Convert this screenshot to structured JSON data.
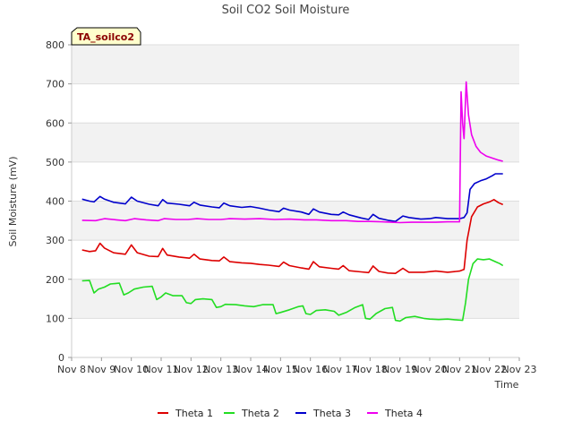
{
  "chart_data": {
    "type": "line",
    "title": "Soil CO2 Soil Moisture",
    "xlabel": "Time",
    "ylabel": "Soil Moisture (mV)",
    "tag": "TA_soilco2",
    "xlim": [
      0,
      15
    ],
    "ylim": [
      0,
      800
    ],
    "yticks": [
      0,
      100,
      200,
      300,
      400,
      500,
      600,
      700,
      800
    ],
    "xticks": [
      0,
      1,
      2,
      3,
      4,
      5,
      6,
      7,
      8,
      9,
      10,
      11,
      12,
      13,
      14,
      15
    ],
    "xtick_labels": [
      "Nov 8",
      "Nov 9",
      "Nov 10",
      "Nov 11",
      "Nov 12",
      "Nov 13",
      "Nov 14",
      "Nov 15",
      "Nov 16",
      "Nov 17",
      "Nov 18",
      "Nov 19",
      "Nov 20",
      "Nov 21",
      "Nov 22",
      "Nov 23"
    ],
    "grid": true,
    "legend_position": "bottom",
    "series": [
      {
        "name": "Theta 1",
        "color": "#dd0000",
        "points": [
          [
            0.35,
            275
          ],
          [
            0.6,
            271
          ],
          [
            0.8,
            273
          ],
          [
            0.95,
            292
          ],
          [
            1.1,
            280
          ],
          [
            1.4,
            268
          ],
          [
            1.8,
            264
          ],
          [
            2.0,
            288
          ],
          [
            2.2,
            268
          ],
          [
            2.6,
            259
          ],
          [
            2.9,
            258
          ],
          [
            3.05,
            279
          ],
          [
            3.2,
            262
          ],
          [
            3.6,
            257
          ],
          [
            3.95,
            254
          ],
          [
            4.1,
            264
          ],
          [
            4.3,
            252
          ],
          [
            4.7,
            248
          ],
          [
            4.95,
            247
          ],
          [
            5.1,
            257
          ],
          [
            5.3,
            245
          ],
          [
            5.7,
            242
          ],
          [
            6.0,
            241
          ],
          [
            6.3,
            238
          ],
          [
            6.6,
            236
          ],
          [
            6.95,
            233
          ],
          [
            7.1,
            244
          ],
          [
            7.3,
            235
          ],
          [
            7.7,
            229
          ],
          [
            7.95,
            226
          ],
          [
            8.1,
            245
          ],
          [
            8.3,
            232
          ],
          [
            8.7,
            228
          ],
          [
            8.95,
            226
          ],
          [
            9.1,
            235
          ],
          [
            9.3,
            222
          ],
          [
            9.7,
            219
          ],
          [
            9.95,
            217
          ],
          [
            10.1,
            234
          ],
          [
            10.3,
            220
          ],
          [
            10.6,
            216
          ],
          [
            10.85,
            215
          ],
          [
            11.1,
            228
          ],
          [
            11.3,
            218
          ],
          [
            11.8,
            218
          ],
          [
            12.2,
            221
          ],
          [
            12.6,
            218
          ],
          [
            13.0,
            221
          ],
          [
            13.15,
            225
          ],
          [
            13.25,
            300
          ],
          [
            13.4,
            360
          ],
          [
            13.6,
            385
          ],
          [
            13.8,
            393
          ],
          [
            14.0,
            398
          ],
          [
            14.15,
            404
          ],
          [
            14.3,
            396
          ],
          [
            14.45,
            391
          ]
        ]
      },
      {
        "name": "Theta 2",
        "color": "#22dd22",
        "points": [
          [
            0.35,
            196
          ],
          [
            0.6,
            197
          ],
          [
            0.75,
            165
          ],
          [
            0.9,
            175
          ],
          [
            1.1,
            180
          ],
          [
            1.3,
            188
          ],
          [
            1.6,
            190
          ],
          [
            1.75,
            160
          ],
          [
            1.9,
            165
          ],
          [
            2.1,
            175
          ],
          [
            2.4,
            180
          ],
          [
            2.7,
            182
          ],
          [
            2.85,
            148
          ],
          [
            3.0,
            155
          ],
          [
            3.15,
            165
          ],
          [
            3.4,
            158
          ],
          [
            3.7,
            158
          ],
          [
            3.85,
            140
          ],
          [
            4.0,
            138
          ],
          [
            4.15,
            148
          ],
          [
            4.4,
            150
          ],
          [
            4.7,
            148
          ],
          [
            4.85,
            128
          ],
          [
            5.0,
            130
          ],
          [
            5.15,
            136
          ],
          [
            5.5,
            135
          ],
          [
            5.8,
            132
          ],
          [
            6.1,
            130
          ],
          [
            6.4,
            135
          ],
          [
            6.75,
            135
          ],
          [
            6.85,
            112
          ],
          [
            7.0,
            115
          ],
          [
            7.3,
            122
          ],
          [
            7.6,
            130
          ],
          [
            7.75,
            132
          ],
          [
            7.85,
            112
          ],
          [
            8.0,
            110
          ],
          [
            8.2,
            120
          ],
          [
            8.5,
            122
          ],
          [
            8.8,
            118
          ],
          [
            8.95,
            108
          ],
          [
            9.2,
            115
          ],
          [
            9.5,
            128
          ],
          [
            9.75,
            135
          ],
          [
            9.85,
            100
          ],
          [
            10.0,
            98
          ],
          [
            10.2,
            112
          ],
          [
            10.5,
            125
          ],
          [
            10.75,
            128
          ],
          [
            10.85,
            95
          ],
          [
            11.0,
            93
          ],
          [
            11.2,
            102
          ],
          [
            11.5,
            105
          ],
          [
            11.8,
            100
          ],
          [
            12.0,
            98
          ],
          [
            12.3,
            97
          ],
          [
            12.6,
            98
          ],
          [
            12.9,
            96
          ],
          [
            13.1,
            95
          ],
          [
            13.2,
            140
          ],
          [
            13.3,
            200
          ],
          [
            13.45,
            240
          ],
          [
            13.6,
            252
          ],
          [
            13.8,
            250
          ],
          [
            14.0,
            252
          ],
          [
            14.2,
            245
          ],
          [
            14.35,
            240
          ],
          [
            14.45,
            235
          ]
        ]
      },
      {
        "name": "Theta 3",
        "color": "#0000cc",
        "points": [
          [
            0.35,
            405
          ],
          [
            0.6,
            400
          ],
          [
            0.75,
            398
          ],
          [
            0.95,
            412
          ],
          [
            1.1,
            405
          ],
          [
            1.4,
            397
          ],
          [
            1.8,
            393
          ],
          [
            2.0,
            410
          ],
          [
            2.2,
            400
          ],
          [
            2.6,
            392
          ],
          [
            2.9,
            388
          ],
          [
            3.05,
            404
          ],
          [
            3.2,
            395
          ],
          [
            3.6,
            392
          ],
          [
            3.95,
            388
          ],
          [
            4.1,
            397
          ],
          [
            4.3,
            390
          ],
          [
            4.7,
            385
          ],
          [
            4.95,
            383
          ],
          [
            5.1,
            395
          ],
          [
            5.3,
            388
          ],
          [
            5.7,
            384
          ],
          [
            6.0,
            386
          ],
          [
            6.3,
            382
          ],
          [
            6.6,
            377
          ],
          [
            6.95,
            373
          ],
          [
            7.1,
            382
          ],
          [
            7.3,
            377
          ],
          [
            7.7,
            372
          ],
          [
            7.95,
            366
          ],
          [
            8.1,
            380
          ],
          [
            8.3,
            372
          ],
          [
            8.7,
            366
          ],
          [
            8.95,
            365
          ],
          [
            9.1,
            372
          ],
          [
            9.3,
            365
          ],
          [
            9.7,
            357
          ],
          [
            9.95,
            353
          ],
          [
            10.1,
            366
          ],
          [
            10.3,
            356
          ],
          [
            10.6,
            351
          ],
          [
            10.85,
            348
          ],
          [
            11.1,
            362
          ],
          [
            11.3,
            358
          ],
          [
            11.7,
            354
          ],
          [
            12.0,
            355
          ],
          [
            12.2,
            358
          ],
          [
            12.6,
            355
          ],
          [
            13.0,
            355
          ],
          [
            13.15,
            358
          ],
          [
            13.25,
            370
          ],
          [
            13.35,
            430
          ],
          [
            13.5,
            445
          ],
          [
            13.7,
            452
          ],
          [
            13.9,
            457
          ],
          [
            14.1,
            465
          ],
          [
            14.2,
            470
          ],
          [
            14.45,
            470
          ]
        ]
      },
      {
        "name": "Theta 4",
        "color": "#ee00ee",
        "points": [
          [
            0.35,
            351
          ],
          [
            0.8,
            350
          ],
          [
            1.1,
            355
          ],
          [
            1.5,
            352
          ],
          [
            1.8,
            350
          ],
          [
            2.1,
            355
          ],
          [
            2.5,
            352
          ],
          [
            2.9,
            350
          ],
          [
            3.1,
            355
          ],
          [
            3.5,
            353
          ],
          [
            3.9,
            353
          ],
          [
            4.2,
            355
          ],
          [
            4.6,
            353
          ],
          [
            5.0,
            353
          ],
          [
            5.3,
            355
          ],
          [
            5.8,
            354
          ],
          [
            6.3,
            355
          ],
          [
            6.8,
            353
          ],
          [
            7.3,
            354
          ],
          [
            7.8,
            352
          ],
          [
            8.2,
            352
          ],
          [
            8.7,
            350
          ],
          [
            9.2,
            350
          ],
          [
            9.6,
            348
          ],
          [
            10.0,
            348
          ],
          [
            10.4,
            347
          ],
          [
            10.7,
            346
          ],
          [
            11.0,
            345
          ],
          [
            11.4,
            346
          ],
          [
            11.8,
            346
          ],
          [
            12.2,
            346
          ],
          [
            12.6,
            347
          ],
          [
            13.0,
            347
          ],
          [
            13.05,
            680
          ],
          [
            13.1,
            600
          ],
          [
            13.15,
            560
          ],
          [
            13.22,
            705
          ],
          [
            13.3,
            620
          ],
          [
            13.4,
            570
          ],
          [
            13.55,
            540
          ],
          [
            13.7,
            525
          ],
          [
            13.9,
            515
          ],
          [
            14.1,
            510
          ],
          [
            14.3,
            505
          ],
          [
            14.45,
            502
          ]
        ]
      }
    ]
  }
}
